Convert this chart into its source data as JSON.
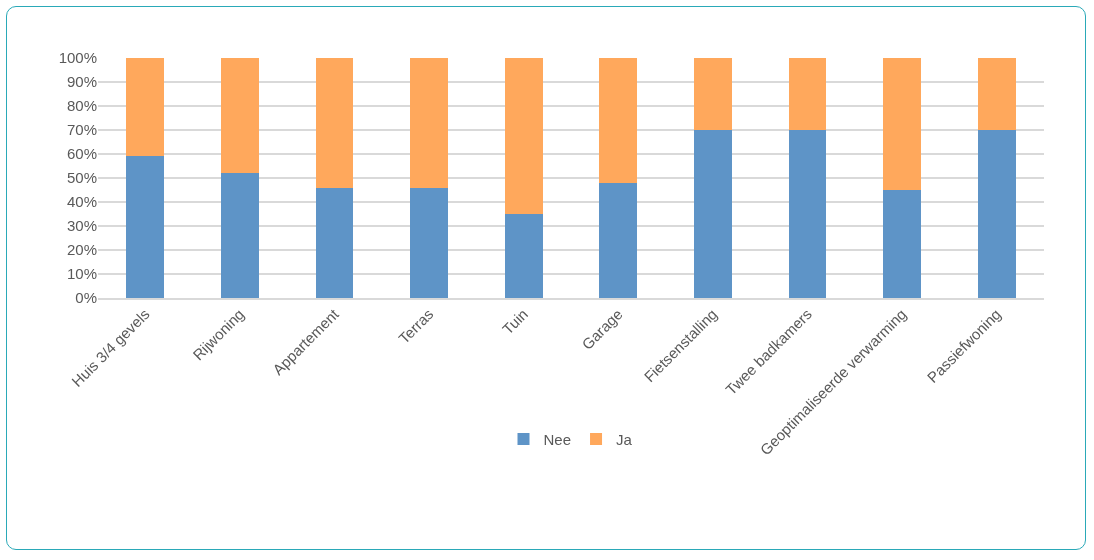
{
  "chart_data": {
    "type": "bar",
    "stacked": true,
    "categories": [
      "Huis 3/4 gevels",
      "Rijwoning",
      "Appartement",
      "Terras",
      "Tuin",
      "Garage",
      "Fietsenstalling",
      "Twee badkamers",
      "Geoptimaliseerde verwarming",
      "Passiefwoning"
    ],
    "series": [
      {
        "name": "Nee",
        "color": "#5e94c7",
        "values": [
          59,
          52,
          46,
          46,
          35,
          48,
          70,
          70,
          45,
          70
        ]
      },
      {
        "name": "Ja",
        "color": "#ffa85c",
        "values": [
          41,
          48,
          54,
          54,
          65,
          52,
          30,
          30,
          55,
          30
        ]
      }
    ],
    "ylim": [
      0,
      100
    ],
    "yticks": [
      {
        "value": 0,
        "label": "0%"
      },
      {
        "value": 10,
        "label": "10%"
      },
      {
        "value": 20,
        "label": "20%"
      },
      {
        "value": 30,
        "label": "30%"
      },
      {
        "value": 40,
        "label": "40%"
      },
      {
        "value": 50,
        "label": "50%"
      },
      {
        "value": 60,
        "label": "60%"
      },
      {
        "value": 70,
        "label": "70%"
      },
      {
        "value": 80,
        "label": "80%"
      },
      {
        "value": 90,
        "label": "90%"
      },
      {
        "value": 100,
        "label": "100%"
      }
    ],
    "grid": "y",
    "legend": "bottom"
  }
}
